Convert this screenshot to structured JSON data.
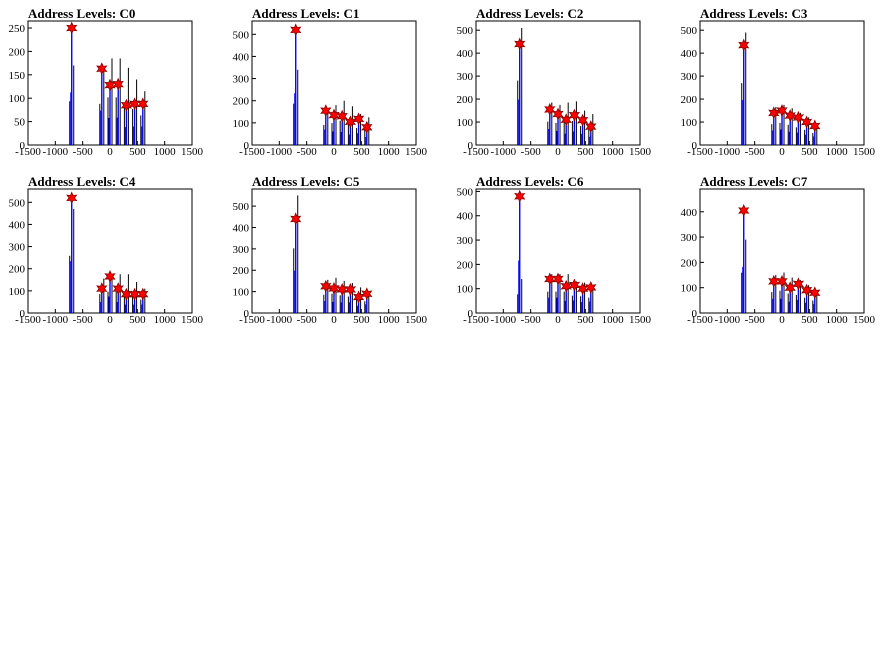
{
  "chart_data": [
    {
      "type": "histogram",
      "title": "Address Levels: C0",
      "xlim": [
        -1500,
        1500
      ],
      "ylim": [
        0,
        265
      ],
      "xticks": [
        -1500,
        -1000,
        -500,
        0,
        500,
        1000,
        1500
      ],
      "yticks": [
        0,
        50,
        100,
        150,
        200,
        250
      ],
      "peaks": [
        [
          -700,
          250
        ],
        [
          -150,
          163
        ],
        [
          0,
          128
        ],
        [
          150,
          130
        ],
        [
          300,
          85
        ],
        [
          450,
          88
        ],
        [
          600,
          88
        ]
      ],
      "black_peaks": [
        [
          -700,
          170
        ],
        [
          -150,
          160
        ],
        [
          0,
          185
        ],
        [
          150,
          185
        ],
        [
          300,
          165
        ],
        [
          450,
          140
        ],
        [
          600,
          115
        ]
      ]
    },
    {
      "type": "histogram",
      "title": "Address Levels: C1",
      "xlim": [
        -1500,
        1500
      ],
      "ylim": [
        0,
        560
      ],
      "xticks": [
        -1500,
        -1000,
        -500,
        0,
        500,
        1000,
        1500
      ],
      "yticks": [
        0,
        100,
        200,
        300,
        400,
        500
      ],
      "peaks": [
        [
          -700,
          520
        ],
        [
          -150,
          155
        ],
        [
          0,
          135
        ],
        [
          150,
          130
        ],
        [
          300,
          105
        ],
        [
          450,
          118
        ],
        [
          600,
          80
        ]
      ],
      "black_peaks": [
        [
          -700,
          340
        ],
        [
          -150,
          165
        ],
        [
          0,
          180
        ],
        [
          150,
          200
        ],
        [
          300,
          175
        ],
        [
          450,
          140
        ],
        [
          600,
          125
        ]
      ]
    },
    {
      "type": "histogram",
      "title": "Address Levels: C2",
      "xlim": [
        -1500,
        1500
      ],
      "ylim": [
        0,
        540
      ],
      "xticks": [
        -1500,
        -1000,
        -500,
        0,
        500,
        1000,
        1500
      ],
      "yticks": [
        0,
        100,
        200,
        300,
        400,
        500
      ],
      "peaks": [
        [
          -700,
          440
        ],
        [
          -150,
          155
        ],
        [
          0,
          135
        ],
        [
          150,
          110
        ],
        [
          300,
          130
        ],
        [
          450,
          108
        ],
        [
          600,
          80
        ]
      ],
      "black_peaks": [
        [
          -700,
          510
        ],
        [
          -150,
          185
        ],
        [
          0,
          175
        ],
        [
          150,
          185
        ],
        [
          300,
          190
        ],
        [
          450,
          150
        ],
        [
          600,
          135
        ]
      ]
    },
    {
      "type": "histogram",
      "title": "Address Levels: C3",
      "xlim": [
        -1500,
        1500
      ],
      "ylim": [
        0,
        540
      ],
      "xticks": [
        -1500,
        -1000,
        -500,
        0,
        500,
        1000,
        1500
      ],
      "yticks": [
        0,
        100,
        200,
        300,
        400,
        500
      ],
      "peaks": [
        [
          -700,
          435
        ],
        [
          -150,
          140
        ],
        [
          0,
          150
        ],
        [
          150,
          128
        ],
        [
          300,
          120
        ],
        [
          450,
          100
        ],
        [
          600,
          83
        ]
      ],
      "black_peaks": [
        [
          -700,
          490
        ],
        [
          -150,
          165
        ],
        [
          0,
          175
        ],
        [
          150,
          160
        ],
        [
          300,
          140
        ],
        [
          450,
          120
        ],
        [
          600,
          95
        ]
      ]
    },
    {
      "type": "histogram",
      "title": "Address Levels: C4",
      "xlim": [
        -1500,
        1500
      ],
      "ylim": [
        0,
        560
      ],
      "xticks": [
        -1500,
        -1000,
        -500,
        0,
        500,
        1000,
        1500
      ],
      "yticks": [
        0,
        100,
        200,
        300,
        400,
        500
      ],
      "peaks": [
        [
          -700,
          520
        ],
        [
          -150,
          110
        ],
        [
          0,
          165
        ],
        [
          150,
          110
        ],
        [
          300,
          85
        ],
        [
          450,
          85
        ],
        [
          600,
          85
        ]
      ],
      "black_peaks": [
        [
          -700,
          470
        ],
        [
          -150,
          155
        ],
        [
          0,
          175
        ],
        [
          150,
          175
        ],
        [
          300,
          175
        ],
        [
          450,
          140
        ],
        [
          600,
          110
        ]
      ]
    },
    {
      "type": "histogram",
      "title": "Address Levels: C5",
      "xlim": [
        -1500,
        1500
      ],
      "ylim": [
        0,
        580
      ],
      "xticks": [
        -1500,
        -1000,
        -500,
        0,
        500,
        1000,
        1500
      ],
      "yticks": [
        0,
        100,
        200,
        300,
        400,
        500
      ],
      "peaks": [
        [
          -700,
          440
        ],
        [
          -150,
          125
        ],
        [
          0,
          115
        ],
        [
          150,
          110
        ],
        [
          300,
          110
        ],
        [
          450,
          75
        ],
        [
          600,
          90
        ]
      ],
      "black_peaks": [
        [
          -700,
          550
        ],
        [
          -150,
          155
        ],
        [
          0,
          165
        ],
        [
          150,
          150
        ],
        [
          300,
          140
        ],
        [
          450,
          120
        ],
        [
          600,
          100
        ]
      ]
    },
    {
      "type": "histogram",
      "title": "Address Levels: C6",
      "xlim": [
        -1500,
        1500
      ],
      "ylim": [
        0,
        510
      ],
      "xticks": [
        -1500,
        -1000,
        -500,
        0,
        500,
        1000,
        1500
      ],
      "yticks": [
        0,
        100,
        200,
        300,
        400,
        500
      ],
      "peaks": [
        [
          -700,
          480
        ],
        [
          -150,
          140
        ],
        [
          0,
          140
        ],
        [
          150,
          110
        ],
        [
          300,
          115
        ],
        [
          450,
          100
        ],
        [
          600,
          105
        ]
      ],
      "black_peaks": [
        [
          -700,
          140
        ],
        [
          -150,
          160
        ],
        [
          0,
          160
        ],
        [
          150,
          160
        ],
        [
          300,
          130
        ],
        [
          450,
          125
        ],
        [
          600,
          115
        ]
      ]
    },
    {
      "type": "histogram",
      "title": "Address Levels: C7",
      "xlim": [
        -1500,
        1500
      ],
      "ylim": [
        0,
        490
      ],
      "xticks": [
        -1500,
        -1000,
        -500,
        0,
        500,
        1000,
        1500
      ],
      "yticks": [
        0,
        100,
        200,
        300,
        400
      ],
      "peaks": [
        [
          -700,
          405
        ],
        [
          -150,
          125
        ],
        [
          0,
          125
        ],
        [
          150,
          100
        ],
        [
          300,
          115
        ],
        [
          450,
          90
        ],
        [
          600,
          80
        ]
      ],
      "black_peaks": [
        [
          -700,
          290
        ],
        [
          -150,
          150
        ],
        [
          0,
          160
        ],
        [
          150,
          140
        ],
        [
          300,
          130
        ],
        [
          450,
          110
        ],
        [
          600,
          90
        ]
      ]
    }
  ],
  "colors": {
    "hist_blue": "#0000ff",
    "hist_black": "#000000",
    "peak_marker": "#ff0000",
    "marker_edge": "#8b0000"
  }
}
